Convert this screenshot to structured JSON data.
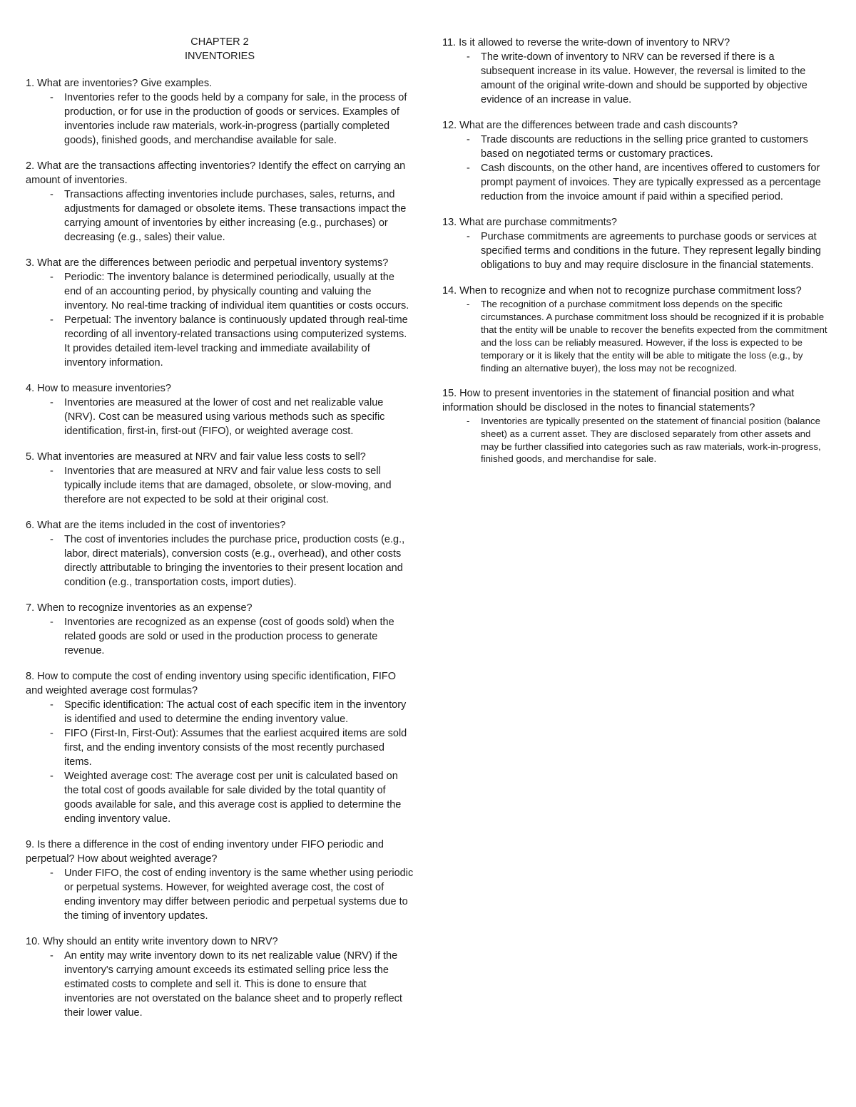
{
  "chapter_line1": "CHAPTER 2",
  "chapter_line2": "INVENTORIES",
  "dash": "-",
  "items": [
    {
      "q": "1. What are inventories? Give examples.",
      "a": [
        "Inventories refer to the goods held by a company for sale, in the process of production, or for use in the production of goods or services. Examples of inventories include raw materials, work-in-progress (partially completed goods), finished goods, and merchandise available for sale."
      ]
    },
    {
      "q": "2. What are the transactions affecting inventories? Identify the effect on carrying an amount of inventories.",
      "a": [
        "Transactions affecting inventories include purchases, sales, returns, and adjustments for damaged or obsolete items. These transactions impact the carrying amount of inventories by either increasing (e.g., purchases) or decreasing (e.g., sales) their value."
      ]
    },
    {
      "q": "3. What are the differences between periodic and perpetual inventory systems?",
      "a": [
        "Periodic: The inventory balance is determined periodically, usually at the end of an accounting period, by physically counting and valuing the inventory. No real-time tracking of individual item quantities or costs occurs.",
        "Perpetual: The inventory balance is continuously updated through real-time recording of all inventory-related transactions using computerized systems. It provides detailed item-level tracking and immediate availability of inventory information."
      ]
    },
    {
      "q": "4. How to measure inventories?",
      "a": [
        "Inventories are measured at the lower of cost and net realizable value (NRV). Cost can be measured using various methods such as specific identification, first-in, first-out (FIFO), or weighted average cost."
      ]
    },
    {
      "q": "5. What inventories are measured at NRV and fair value less costs to sell?",
      "a": [
        "Inventories that are measured at NRV and fair value less costs to sell typically include items that are damaged, obsolete, or slow-moving, and therefore are not expected to be sold at their original cost."
      ]
    },
    {
      "q": "6. What are the items included in the cost of inventories?",
      "a": [
        "The cost of inventories includes the purchase price, production costs (e.g., labor, direct materials), conversion costs (e.g., overhead), and other costs directly attributable to bringing the inventories to their present location and condition (e.g., transportation costs, import duties)."
      ]
    },
    {
      "q": "7. When to recognize inventories as an expense?",
      "a": [
        "Inventories are recognized as an expense (cost of goods sold) when the related goods are sold or used in the production process to generate revenue."
      ]
    },
    {
      "q": "8. How to compute the cost of ending inventory using specific identification, FIFO and weighted average cost formulas?",
      "a": [
        "Specific identification: The actual cost of each specific item in the inventory is identified and used to determine the ending inventory value.",
        "FIFO (First-In, First-Out): Assumes that the earliest acquired items are sold first, and the ending inventory consists of the most recently purchased items.",
        "Weighted average cost: The average cost per unit is calculated based on the total cost of goods available for sale divided by the total quantity of goods available for sale, and this average cost is applied to determine the ending inventory value."
      ]
    },
    {
      "q": "9. Is there a difference in the cost of ending inventory under FIFO periodic and perpetual? How about weighted average?",
      "a": [
        "Under FIFO, the cost of ending inventory is the same whether using periodic or perpetual systems. However, for weighted average cost, the cost of ending inventory may differ between periodic and perpetual systems due to the timing of inventory updates."
      ]
    },
    {
      "q": "10. Why should an entity write inventory down to NRV?",
      "a": [
        "An entity may write inventory down to its net realizable value (NRV) if the inventory's carrying amount exceeds its estimated selling price less the estimated costs to complete and sell it. This is done to ensure that inventories are not overstated on the balance sheet and to properly reflect their lower value."
      ]
    },
    {
      "q": "11. Is it allowed to reverse the write-down of inventory to NRV?",
      "a": [
        "The write-down of inventory to NRV can be reversed if there is a subsequent increase in its value. However, the reversal is limited to the amount of the original write-down and should be supported by objective evidence of an increase in value."
      ]
    },
    {
      "q": "12. What are the differences between trade and cash discounts?",
      "a": [
        "Trade discounts are reductions in the selling price granted to customers based on negotiated terms or customary practices.",
        "Cash discounts, on the other hand, are incentives offered to customers for prompt payment of invoices. They are typically expressed as a percentage reduction from the invoice amount if paid within a specified period."
      ]
    },
    {
      "q": "13. What are purchase commitments?",
      "a": [
        "Purchase commitments are agreements to purchase goods or services at specified terms and conditions in the future. They represent legally binding obligations to buy and may require disclosure in the financial statements."
      ]
    },
    {
      "q": "14. When to recognize and when not to recognize purchase commitment loss?",
      "small": true,
      "a": [
        "The recognition of a purchase commitment loss depends on the specific circumstances. A purchase commitment loss should be recognized if it is probable that the entity will be unable to recover the benefits expected from the commitment and the loss can be reliably measured. However, if the loss is expected to be temporary or it is likely that the entity will be able to mitigate the loss (e.g., by finding an alternative buyer), the loss may not be recognized."
      ]
    },
    {
      "q": "15. How to present inventories in the statement of financial position and what information should be disclosed in the notes to financial statements?",
      "small": true,
      "a": [
        "Inventories are typically presented on the statement of financial position (balance sheet) as a current asset. They are disclosed separately from other assets and may be further classified into categories such as raw materials, work-in-progress, finished goods, and merchandise for sale."
      ]
    }
  ]
}
